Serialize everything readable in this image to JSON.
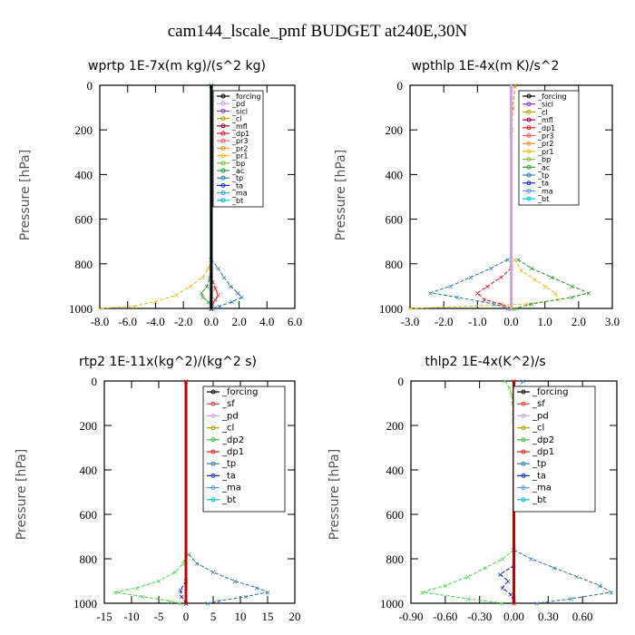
{
  "figure_title": "cam144_lscale_pmf  BUDGET at240E,30N",
  "chart_data": [
    {
      "type": "line",
      "title": "wprtp   1E-7x(m kg)/(s^2 kg)",
      "ylabel": "Pressure [hPa]",
      "xlim": [
        -8,
        6
      ],
      "ylim": [
        1000,
        0
      ],
      "xticks": [
        "-8.0",
        "-6.0",
        "-4.0",
        "-2.0",
        "0.0",
        "2.0",
        "4.0",
        "6.0"
      ],
      "xtick_values": [
        -8,
        -6,
        -4,
        -2,
        0,
        2,
        4,
        6
      ],
      "yticks": [
        "0",
        "200",
        "400",
        "600",
        "800",
        "1000"
      ],
      "ytick_values": [
        0,
        200,
        400,
        600,
        800,
        1000
      ],
      "legend": [
        "_forcing",
        "_pd",
        "_sicl",
        "_cl",
        "_mfl",
        "_dp1",
        "_pr3",
        "_pr2",
        "_pr1",
        "_bp",
        "_ac",
        "_tp",
        "_ta",
        "_ma",
        "_bt"
      ],
      "series": [
        {
          "name": "_pr1",
          "color": "#f0c020",
          "y": [
            780,
            820,
            860,
            900,
            940,
            970,
            990,
            1000
          ],
          "x": [
            0,
            -0.2,
            -0.6,
            -1.5,
            -2.5,
            -4.0,
            -5.5,
            -8.0
          ]
        },
        {
          "name": "_tp",
          "color": "#2f7fb0",
          "y": [
            780,
            820,
            860,
            900,
            930,
            950,
            970,
            990,
            1000
          ],
          "x": [
            0,
            0.5,
            0.9,
            1.4,
            1.9,
            2.2,
            1.5,
            0.6,
            0.1
          ]
        },
        {
          "name": "_ac",
          "color": "#30a030",
          "y": [
            820,
            860,
            900,
            930,
            950,
            970,
            990,
            1000
          ],
          "x": [
            0,
            -0.1,
            -0.3,
            -0.7,
            -0.6,
            -0.2,
            0.0,
            0.0
          ]
        },
        {
          "name": "_dp1",
          "color": "#e02020",
          "y": [
            850,
            880,
            910,
            940,
            960,
            980,
            1000
          ],
          "x": [
            0,
            0.1,
            0.3,
            0.5,
            0.3,
            0.1,
            0.0
          ]
        },
        {
          "name": "_bt",
          "color": "#00c0e0",
          "y": [
            0,
            1000
          ],
          "x": [
            0,
            0
          ]
        },
        {
          "name": "_forcing",
          "color": "#000000",
          "y": [
            0,
            1000
          ],
          "x": [
            0,
            0
          ]
        }
      ]
    },
    {
      "type": "line",
      "title": "wpthlp   1E-4x(m K)/s^2",
      "ylabel": "Pressure [hPa]",
      "xlim": [
        -3,
        3
      ],
      "ylim": [
        1000,
        0
      ],
      "xticks": [
        "-3.0",
        "-2.0",
        "-1.0",
        "0.0",
        "1.0",
        "2.0",
        "3.0"
      ],
      "xtick_values": [
        -3,
        -2,
        -1,
        0,
        1,
        2,
        3
      ],
      "yticks": [
        "0",
        "200",
        "400",
        "600",
        "800",
        "1000"
      ],
      "ytick_values": [
        0,
        200,
        400,
        600,
        800,
        1000
      ],
      "legend": [
        "_forcing",
        "_sicl",
        "_cl",
        "_mfl",
        "_dp1",
        "_pr3",
        "_pr2",
        "_pr1",
        "_bp",
        "_ac",
        "_tp",
        "_ta",
        "_ma",
        "_bt"
      ],
      "series": [
        {
          "name": "_pr1",
          "color": "#f0c020",
          "y": [
            780,
            830,
            870,
            900,
            930,
            960,
            980,
            1000
          ],
          "x": [
            0.1,
            0.3,
            0.7,
            1.0,
            1.3,
            1.4,
            0.5,
            -3.0
          ]
        },
        {
          "name": "_ac",
          "color": "#30a030",
          "y": [
            780,
            820,
            860,
            900,
            930,
            950,
            980,
            1000
          ],
          "x": [
            0.2,
            0.6,
            1.2,
            1.8,
            2.3,
            1.8,
            0.6,
            0.1
          ]
        },
        {
          "name": "_tp",
          "color": "#2f7fb0",
          "y": [
            780,
            820,
            860,
            900,
            930,
            950,
            980,
            1000
          ],
          "x": [
            -0.1,
            -0.6,
            -1.2,
            -1.8,
            -2.4,
            -1.6,
            -0.5,
            -0.1
          ]
        },
        {
          "name": "_dp1",
          "color": "#e02020",
          "y": [
            820,
            860,
            900,
            930,
            960,
            980,
            1000
          ],
          "x": [
            0,
            -0.3,
            -0.7,
            -1.0,
            -0.8,
            -0.3,
            0
          ]
        },
        {
          "name": "_cl",
          "color": "#c0a000",
          "y": [
            0,
            100,
            200,
            1000
          ],
          "x": [
            0.12,
            0.05,
            0.02,
            0.02
          ]
        },
        {
          "name": "_forcing",
          "color": "#d4a0e0",
          "y": [
            0,
            1000
          ],
          "x": [
            0,
            0
          ]
        }
      ]
    },
    {
      "type": "line",
      "title": "rtp2   1E-11x(kg^2)/(kg^2 s)",
      "ylabel": "Pressure [hPa]",
      "xlim": [
        -15,
        20
      ],
      "ylim": [
        1000,
        0
      ],
      "xticks": [
        "-15",
        "-10",
        "-5",
        "0",
        "5",
        "10",
        "15",
        "20"
      ],
      "xtick_values": [
        -15,
        -10,
        -5,
        0,
        5,
        10,
        15,
        20
      ],
      "yticks": [
        "0",
        "200",
        "400",
        "600",
        "800",
        "1000"
      ],
      "ytick_values": [
        0,
        200,
        400,
        600,
        800,
        1000
      ],
      "legend": [
        "_forcing",
        "_sf",
        "_pd",
        "_cl",
        "_dp2",
        "_dp1",
        "_tp",
        "_ta",
        "_ma",
        "_bt"
      ],
      "series": [
        {
          "name": "_dp1",
          "color": "#50e050",
          "y": [
            780,
            820,
            860,
            900,
            930,
            950,
            970,
            990,
            1000
          ],
          "x": [
            0,
            -0.5,
            -2.0,
            -5.0,
            -9.0,
            -13.0,
            -8.0,
            -3.0,
            -1.0
          ]
        },
        {
          "name": "_tp",
          "color": "#2f7fb0",
          "y": [
            780,
            820,
            860,
            900,
            930,
            950,
            970,
            990,
            1000
          ],
          "x": [
            0.5,
            2.0,
            5.0,
            9.0,
            13.0,
            15.0,
            11.0,
            6.0,
            4.0
          ]
        },
        {
          "name": "_ta",
          "color": "#1030c0",
          "y": [
            900,
            940,
            970,
            1000
          ],
          "x": [
            0,
            -1.0,
            -0.8,
            0
          ]
        },
        {
          "name": "_forcing",
          "color": "#c00000",
          "y": [
            0,
            1000
          ],
          "x": [
            0,
            0
          ]
        }
      ]
    },
    {
      "type": "line",
      "title": "thlp2   1E-4x(K^2)/s",
      "ylabel": "Pressure [hPa]",
      "xlim": [
        -0.9,
        0.9
      ],
      "ylim": [
        1000,
        0
      ],
      "xticks": [
        "-0.90",
        "-0.60",
        "-0.30",
        "0.00",
        "0.30",
        "0.60"
      ],
      "xtick_values": [
        -0.9,
        -0.6,
        -0.3,
        0,
        0.3,
        0.6
      ],
      "yticks": [
        "0",
        "200",
        "400",
        "600",
        "800",
        "1000"
      ],
      "ytick_values": [
        0,
        200,
        400,
        600,
        800,
        1000
      ],
      "legend": [
        "_forcing",
        "_sf",
        "_pd",
        "_cl",
        "_dp2",
        "_dp1",
        "_tp",
        "_ta",
        "_ma",
        "_bt"
      ],
      "series": [
        {
          "name": "_dp1",
          "color": "#50e050",
          "y": [
            0,
            30,
            60,
            100,
            140,
            180
          ],
          "x": [
            -0.08,
            -0.04,
            -0.02,
            -0.01,
            0.0,
            0.0
          ]
        },
        {
          "name": "_tp",
          "color": "#2f7fb0",
          "y": [
            0,
            30,
            60,
            100,
            140,
            180
          ],
          "x": [
            0.08,
            0.04,
            0.02,
            0.01,
            0.0,
            0.0
          ]
        },
        {
          "name": "_dp1",
          "color": "#50e050",
          "y": [
            760,
            800,
            840,
            880,
            920,
            950,
            980,
            1000
          ],
          "x": [
            0,
            -0.1,
            -0.25,
            -0.4,
            -0.6,
            -0.8,
            -0.4,
            -0.1
          ]
        },
        {
          "name": "_tp",
          "color": "#2f7fb0",
          "y": [
            760,
            800,
            840,
            880,
            920,
            950,
            980,
            1000
          ],
          "x": [
            0,
            0.15,
            0.35,
            0.55,
            0.75,
            0.85,
            0.5,
            0.2
          ]
        },
        {
          "name": "_ta",
          "color": "#1030c0",
          "y": [
            830,
            870,
            900,
            930,
            960,
            990
          ],
          "x": [
            0,
            -0.12,
            -0.05,
            -0.1,
            -0.03,
            0
          ]
        },
        {
          "name": "_forcing",
          "color": "#c00000",
          "y": [
            0,
            1000
          ],
          "x": [
            0,
            0
          ]
        }
      ]
    }
  ]
}
